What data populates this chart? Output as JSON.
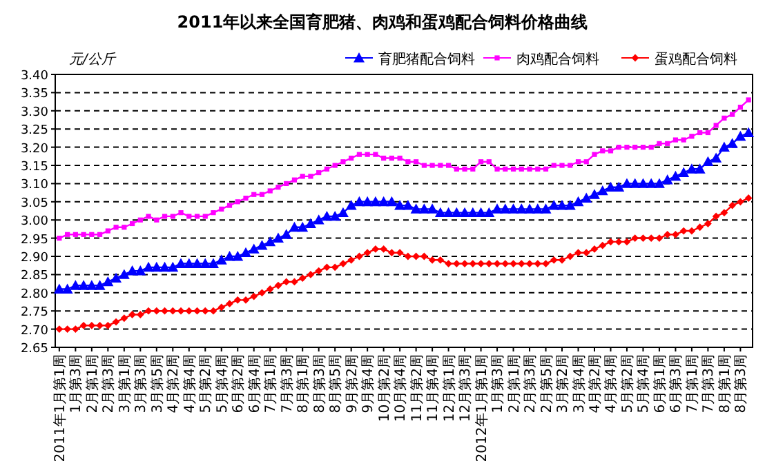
{
  "chart_data": {
    "type": "line",
    "title": "2011年以来全国育肥猪、肉鸡和蛋鸡配合饲料价格曲线",
    "ylabel": "元/公斤",
    "categories": [
      "2011年1月第1周",
      null,
      "1月第3周",
      null,
      "2月第1周",
      null,
      "2月第3周",
      null,
      "3月第1周",
      null,
      "3月第3周",
      null,
      "3月第5周",
      null,
      "4月第2周",
      null,
      "4月第4周",
      null,
      "5月第2周",
      null,
      "5月第4周",
      null,
      "6月第2周",
      null,
      "6月第4周",
      null,
      "7月第1周",
      null,
      "7月第3周",
      null,
      "8月第1周",
      null,
      "8月第3周",
      null,
      "8月第5周",
      null,
      "9月第2周",
      null,
      "9月第4周",
      null,
      "10月第2周",
      null,
      "10月第4周",
      null,
      "11月第2周",
      null,
      "11月第4周",
      null,
      "12月第1周",
      null,
      "12月第3周",
      null,
      "2012年1月第1周",
      null,
      "1月第3周",
      null,
      "2月第1周",
      null,
      "2月第3周",
      null,
      "2月第5周",
      null,
      "3月第2周",
      null,
      "3月第4周",
      null,
      "4月第2周",
      null,
      "4月第4周",
      null,
      "5月第2周",
      null,
      "5月第4周",
      null,
      "6月第1周",
      null,
      "6月第3周",
      null,
      "7月第1周",
      null,
      "7月第3周",
      null,
      "8月第1周",
      null,
      "8月第3周",
      null
    ],
    "series": [
      {
        "name": "育肥猪配合饲料",
        "color": "#0000ff",
        "marker": "triangle",
        "values": [
          2.81,
          2.81,
          2.82,
          2.82,
          2.82,
          2.82,
          2.83,
          2.84,
          2.85,
          2.86,
          2.86,
          2.87,
          2.87,
          2.87,
          2.87,
          2.88,
          2.88,
          2.88,
          2.88,
          2.88,
          2.89,
          2.9,
          2.9,
          2.91,
          2.92,
          2.93,
          2.94,
          2.95,
          2.96,
          2.98,
          2.98,
          2.99,
          3.0,
          3.01,
          3.01,
          3.02,
          3.04,
          3.05,
          3.05,
          3.05,
          3.05,
          3.05,
          3.04,
          3.04,
          3.03,
          3.03,
          3.03,
          3.02,
          3.02,
          3.02,
          3.02,
          3.02,
          3.02,
          3.02,
          3.03,
          3.03,
          3.03,
          3.03,
          3.03,
          3.03,
          3.03,
          3.04,
          3.04,
          3.04,
          3.05,
          3.06,
          3.07,
          3.08,
          3.09,
          3.09,
          3.1,
          3.1,
          3.1,
          3.1,
          3.1,
          3.11,
          3.12,
          3.13,
          3.14,
          3.14,
          3.16,
          3.17,
          3.2,
          3.21,
          3.23,
          3.24
        ]
      },
      {
        "name": "肉鸡配合饲料",
        "color": "#ff00ff",
        "marker": "square",
        "values": [
          2.95,
          2.96,
          2.96,
          2.96,
          2.96,
          2.96,
          2.97,
          2.98,
          2.98,
          2.99,
          3.0,
          3.01,
          3.0,
          3.01,
          3.01,
          3.02,
          3.01,
          3.01,
          3.01,
          3.02,
          3.03,
          3.04,
          3.05,
          3.06,
          3.07,
          3.07,
          3.08,
          3.09,
          3.1,
          3.11,
          3.12,
          3.12,
          3.13,
          3.14,
          3.15,
          3.16,
          3.17,
          3.18,
          3.18,
          3.18,
          3.17,
          3.17,
          3.17,
          3.16,
          3.16,
          3.15,
          3.15,
          3.15,
          3.15,
          3.14,
          3.14,
          3.14,
          3.16,
          3.16,
          3.14,
          3.14,
          3.14,
          3.14,
          3.14,
          3.14,
          3.14,
          3.15,
          3.15,
          3.15,
          3.16,
          3.16,
          3.18,
          3.19,
          3.19,
          3.2,
          3.2,
          3.2,
          3.2,
          3.2,
          3.21,
          3.21,
          3.22,
          3.22,
          3.23,
          3.24,
          3.24,
          3.26,
          3.28,
          3.29,
          3.31,
          3.33
        ]
      },
      {
        "name": "蛋鸡配合饲料",
        "color": "#ff0000",
        "marker": "diamond",
        "values": [
          2.7,
          2.7,
          2.7,
          2.71,
          2.71,
          2.71,
          2.71,
          2.72,
          2.73,
          2.74,
          2.74,
          2.75,
          2.75,
          2.75,
          2.75,
          2.75,
          2.75,
          2.75,
          2.75,
          2.75,
          2.76,
          2.77,
          2.78,
          2.78,
          2.79,
          2.8,
          2.81,
          2.82,
          2.83,
          2.83,
          2.84,
          2.85,
          2.86,
          2.87,
          2.87,
          2.88,
          2.89,
          2.9,
          2.91,
          2.92,
          2.92,
          2.91,
          2.91,
          2.9,
          2.9,
          2.9,
          2.89,
          2.89,
          2.88,
          2.88,
          2.88,
          2.88,
          2.88,
          2.88,
          2.88,
          2.88,
          2.88,
          2.88,
          2.88,
          2.88,
          2.88,
          2.89,
          2.89,
          2.9,
          2.91,
          2.91,
          2.92,
          2.93,
          2.94,
          2.94,
          2.94,
          2.95,
          2.95,
          2.95,
          2.95,
          2.96,
          2.96,
          2.97,
          2.97,
          2.98,
          2.99,
          3.01,
          3.02,
          3.04,
          3.05,
          3.06
        ]
      }
    ],
    "ylim": [
      2.65,
      3.4
    ],
    "yticks": [
      {
        "value": 2.65,
        "label": "2.65"
      },
      {
        "value": 2.7,
        "label": "2.70"
      },
      {
        "value": 2.75,
        "label": "2.75"
      },
      {
        "value": 2.8,
        "label": "2.80"
      },
      {
        "value": 2.85,
        "label": "2.85"
      },
      {
        "value": 2.9,
        "label": "2.90"
      },
      {
        "value": 2.95,
        "label": "2.95"
      },
      {
        "value": 3.0,
        "label": "3.00"
      },
      {
        "value": 3.05,
        "label": "3.05"
      },
      {
        "value": 3.1,
        "label": "3.10"
      },
      {
        "value": 3.15,
        "label": "3.15"
      },
      {
        "value": 3.2,
        "label": "3.20"
      },
      {
        "value": 3.25,
        "label": "3.25"
      },
      {
        "value": 3.3,
        "label": "3.30"
      },
      {
        "value": 3.35,
        "label": "3.35"
      },
      {
        "value": 3.4,
        "label": "3.40"
      }
    ],
    "grid": "y",
    "legend": "top right",
    "line_style": "solid"
  }
}
